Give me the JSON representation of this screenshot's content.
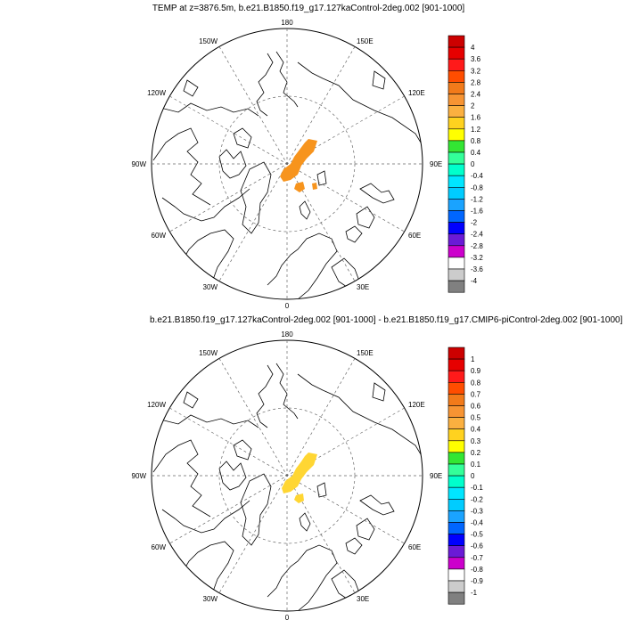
{
  "panels": [
    {
      "title": "TEMP at z=3876.5m, b.e21.B1850.f19_g17.127kaControl-2deg.002 [901-1000]",
      "lon_labels": {
        "top": "180",
        "bottom": "0",
        "left": "90W",
        "right": "90E",
        "ul1": "150W",
        "ur1": "150E",
        "ul2": "120W",
        "ur2": "120E",
        "ll1": "60W",
        "lr1": "60E",
        "ll2": "30W",
        "lr2": "30E"
      },
      "colorbar_labels": [
        "4",
        "3.6",
        "3.2",
        "2.8",
        "2.4",
        "2",
        "1.6",
        "1.2",
        "0.8",
        "0.4",
        "0",
        "-0.4",
        "-0.8",
        "-1.2",
        "-1.6",
        "-2",
        "-2.4",
        "-2.8",
        "-3.2",
        "-3.6",
        "-4"
      ],
      "anomaly_color": "#f7941d"
    },
    {
      "title": "b.e21.B1850.f19_g17.127kaControl-2deg.002 [901-1000] - b.e21.B1850.f19_g17.CMIP6-piControl-2deg.002 [901-1000]",
      "lon_labels": {
        "top": "180",
        "bottom": "0",
        "left": "90W",
        "right": "90E",
        "ul1": "150W",
        "ur1": "150E",
        "ul2": "120W",
        "ur2": "120E",
        "ll1": "60W",
        "lr1": "60E",
        "ll2": "30W",
        "lr2": "30E"
      },
      "colorbar_labels": [
        "1",
        "0.9",
        "0.8",
        "0.7",
        "0.6",
        "0.5",
        "0.4",
        "0.3",
        "0.2",
        "0.1",
        "0",
        "-0.1",
        "-0.2",
        "-0.3",
        "-0.4",
        "-0.5",
        "-0.6",
        "-0.7",
        "-0.8",
        "-0.9",
        "-1"
      ],
      "anomaly_color": "#ffd633"
    }
  ],
  "colorbar_colors": [
    "#cc0000",
    "#e60000",
    "#ff1a1a",
    "#ff4d00",
    "#f27a1a",
    "#f79433",
    "#fbb040",
    "#ffd21f",
    "#ffff00",
    "#33e633",
    "#33ff99",
    "#00ffcc",
    "#00e6ff",
    "#00ccff",
    "#1aa3ff",
    "#0066ff",
    "#0000ff",
    "#6a1ad6",
    "#cc00cc",
    "#ffffff",
    "#cccccc",
    "#808080"
  ]
}
